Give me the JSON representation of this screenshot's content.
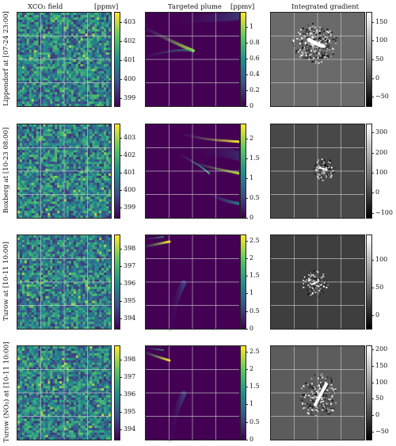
{
  "titles": {
    "xco2": "XCO₂ field",
    "xco2_unit": "[ppmv]",
    "plume": "Targeted plume",
    "plume_unit": "[ppmv]",
    "grad": "Integrated gradient"
  },
  "rows": [
    {
      "label": "Lippendorf at [07-24 23:00]"
    },
    {
      "label": "Boxberg at [10-23 08:00]"
    },
    {
      "label": "Turow at [10-11 10:00]"
    },
    {
      "label": "Turow (NO₂) at [10-11 10:00]"
    }
  ],
  "colors": {
    "viridis_low": "#440154",
    "viridis_high": "#fde725",
    "grid_line": "#cccccc"
  },
  "chart_data": [
    {
      "type": "heatmap",
      "row": 0,
      "panel": "xco2",
      "colormap": "viridis",
      "colorbar_ticks": [
        399,
        400,
        401,
        402,
        403
      ],
      "clim": [
        398.6,
        403.5
      ]
    },
    {
      "type": "heatmap",
      "row": 0,
      "panel": "plume",
      "colormap": "viridis",
      "colorbar_ticks": [
        0.0,
        0.2,
        0.4,
        0.6,
        0.8,
        1.0
      ],
      "clim": [
        0,
        1.18
      ]
    },
    {
      "type": "heatmap",
      "row": 0,
      "panel": "grad",
      "colormap": "gray",
      "colorbar_ticks": [
        -50,
        0,
        50,
        100,
        150
      ],
      "clim": [
        -75,
        175
      ]
    },
    {
      "type": "heatmap",
      "row": 1,
      "panel": "xco2",
      "colormap": "viridis",
      "colorbar_ticks": [
        399,
        400,
        401,
        402,
        403
      ],
      "clim": [
        398.4,
        403.8
      ]
    },
    {
      "type": "heatmap",
      "row": 1,
      "panel": "plume",
      "colormap": "viridis",
      "colorbar_ticks": [
        0.0,
        0.5,
        1.0,
        1.5,
        2.0
      ],
      "clim": [
        0,
        2.35
      ]
    },
    {
      "type": "heatmap",
      "row": 1,
      "panel": "grad",
      "colormap": "gray",
      "colorbar_ticks": [
        -100,
        0,
        100,
        200,
        300
      ],
      "clim": [
        -125,
        340
      ]
    },
    {
      "type": "heatmap",
      "row": 2,
      "panel": "xco2",
      "colormap": "viridis",
      "colorbar_ticks": [
        394,
        395,
        396,
        397,
        398
      ],
      "clim": [
        393.4,
        398.8
      ]
    },
    {
      "type": "heatmap",
      "row": 2,
      "panel": "plume",
      "colormap": "viridis",
      "colorbar_ticks": [
        0.0,
        0.5,
        1.0,
        1.5,
        2.0,
        2.5
      ],
      "clim": [
        0,
        2.65
      ]
    },
    {
      "type": "heatmap",
      "row": 2,
      "panel": "grad",
      "colormap": "gray",
      "colorbar_ticks": [
        0,
        50,
        100
      ],
      "clim": [
        -25,
        145
      ]
    },
    {
      "type": "heatmap",
      "row": 3,
      "panel": "xco2",
      "colormap": "viridis",
      "colorbar_ticks": [
        394,
        395,
        396,
        397,
        398
      ],
      "clim": [
        393.4,
        398.8
      ]
    },
    {
      "type": "heatmap",
      "row": 3,
      "panel": "plume",
      "colormap": "viridis",
      "colorbar_ticks": [
        0.0,
        0.5,
        1.0,
        1.5,
        2.0,
        2.5
      ],
      "clim": [
        0,
        2.65
      ]
    },
    {
      "type": "heatmap",
      "row": 3,
      "panel": "grad",
      "colormap": "gray",
      "colorbar_ticks": [
        -50,
        0,
        50,
        100,
        150,
        200
      ],
      "clim": [
        -75,
        210
      ]
    }
  ]
}
